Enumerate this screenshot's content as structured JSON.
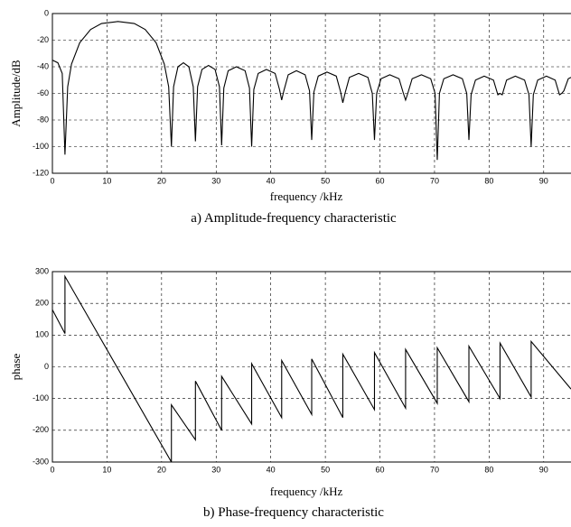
{
  "chart_data": [
    {
      "type": "line",
      "xlabel": "frequency /kHz",
      "ylabel": "Amplitude/dB",
      "caption": "a) Amplitude-frequency characteristic",
      "color": "#000000",
      "grid": true,
      "xlim": [
        0,
        95
      ],
      "xticks": [
        0,
        10,
        20,
        30,
        40,
        50,
        60,
        70,
        80,
        90
      ],
      "ylim": [
        -120,
        0
      ],
      "yticks": [
        0,
        -20,
        -40,
        -60,
        -80,
        -100,
        -120
      ],
      "x": [
        0,
        1,
        1.8,
        2.3,
        2.8,
        3.5,
        5,
        7,
        9,
        12,
        15,
        17,
        19,
        20.5,
        21.3,
        21.8,
        22.2,
        23,
        24,
        25,
        25.8,
        26.2,
        26.6,
        27.4,
        28.6,
        29.8,
        30.6,
        31,
        31.4,
        32.2,
        33.7,
        35.3,
        36.1,
        36.5,
        36.9,
        37.7,
        39.2,
        40.8,
        41.6,
        42,
        42.4,
        43.2,
        44.7,
        46.3,
        47.1,
        47.5,
        47.9,
        48.7,
        50.3,
        52,
        52.8,
        53.2,
        53.6,
        54.4,
        56.1,
        57.8,
        58.6,
        59,
        59.4,
        60.2,
        61.8,
        63.5,
        64.3,
        64.7,
        65.1,
        65.9,
        67.6,
        69.3,
        70.1,
        70.5,
        70.9,
        71.7,
        73.4,
        75.1,
        75.9,
        76.3,
        76.7,
        77.5,
        79.1,
        80.8,
        81.6,
        82,
        82.4,
        83.2,
        84.8,
        86.5,
        87.3,
        87.7,
        88.1,
        88.9,
        90.5,
        92.1,
        92.9,
        93.3,
        93.7,
        94.5,
        95
      ],
      "values": [
        -35,
        -37,
        -45,
        -106,
        -55,
        -38,
        -22,
        -12,
        -7.5,
        -6,
        -7.5,
        -12,
        -22,
        -38,
        -55,
        -100,
        -55,
        -40,
        -37,
        -40,
        -55,
        -96,
        -55,
        -42,
        -39,
        -42,
        -55,
        -99,
        -56,
        -43,
        -40,
        -43,
        -56,
        -100,
        -57,
        -45,
        -42,
        -45,
        -57,
        -65,
        -58,
        -46,
        -43,
        -46,
        -58,
        -95,
        -59,
        -47,
        -44,
        -47,
        -59,
        -67,
        -60,
        -48,
        -45,
        -48,
        -60,
        -95,
        -60,
        -49,
        -46,
        -49,
        -60,
        -65,
        -60,
        -49,
        -46,
        -49,
        -60,
        -110,
        -60,
        -49,
        -46,
        -49,
        -60,
        -95,
        -61,
        -50,
        -47,
        -50,
        -61,
        -60,
        -61,
        -50,
        -47,
        -50,
        -61,
        -100,
        -61,
        -50,
        -47,
        -50,
        -61,
        -60,
        -58,
        -49,
        -48
      ]
    },
    {
      "type": "line",
      "xlabel": "frequency /kHz",
      "ylabel": "phase",
      "caption": "b) Phase-frequency characteristic",
      "color": "#000000",
      "grid": true,
      "xlim": [
        0,
        95
      ],
      "xticks": [
        0,
        10,
        20,
        30,
        40,
        50,
        60,
        70,
        80,
        90
      ],
      "ylim": [
        -300,
        300
      ],
      "yticks": [
        300,
        200,
        100,
        0,
        -100,
        -200,
        -300
      ],
      "x": [
        0,
        2.3,
        2.3,
        21.8,
        21.8,
        26.2,
        26.2,
        31,
        31,
        36.5,
        36.5,
        42,
        42,
        47.5,
        47.5,
        53.2,
        53.2,
        59,
        59,
        64.7,
        64.7,
        70.5,
        70.5,
        76.3,
        76.3,
        82,
        82,
        87.7,
        87.7,
        95
      ],
      "values": [
        180,
        105,
        285,
        -300,
        -120,
        -230,
        -45,
        -200,
        -30,
        -180,
        10,
        -160,
        20,
        -150,
        25,
        -160,
        40,
        -135,
        45,
        -130,
        55,
        -115,
        60,
        -110,
        65,
        -100,
        75,
        -95,
        80,
        -70
      ]
    }
  ]
}
